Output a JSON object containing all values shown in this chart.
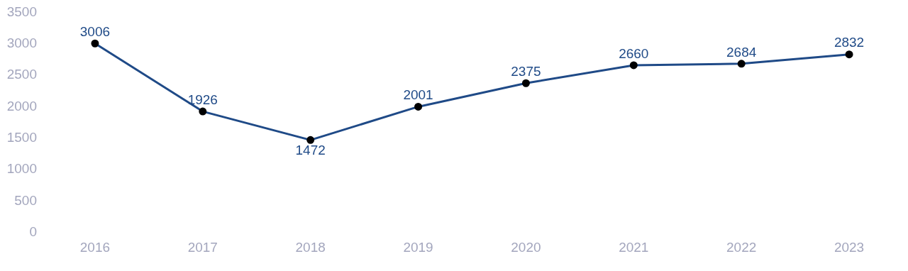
{
  "chart_data": {
    "type": "line",
    "categories": [
      "2016",
      "2017",
      "2018",
      "2019",
      "2020",
      "2021",
      "2022",
      "2023"
    ],
    "series": [
      {
        "color": "#1f4a87",
        "values": [
          3006,
          1926,
          1472,
          2001,
          2375,
          2660,
          2684,
          2832
        ]
      }
    ],
    "ylim": [
      0,
      3500
    ],
    "yticks": [
      0,
      500,
      1000,
      1500,
      2000,
      2500,
      3000,
      3500
    ],
    "data_labels": true,
    "grid": false,
    "legend": false,
    "marker": "circle",
    "line_style": "solid"
  }
}
